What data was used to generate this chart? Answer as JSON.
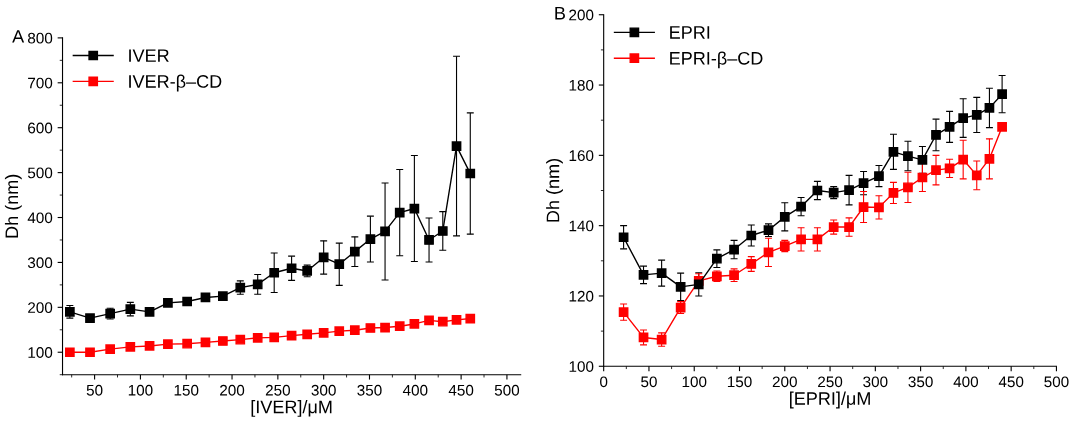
{
  "chart_data": [
    {
      "type": "line",
      "xlabel": "[IVER]/μM",
      "ylabel": "Dh (nm)",
      "annotations": [
        "A"
      ],
      "xlim": [
        15,
        515
      ],
      "ylim": [
        50,
        800
      ],
      "xticks": [
        50,
        100,
        150,
        200,
        250,
        300,
        350,
        400,
        450,
        500
      ],
      "yticks": [
        100,
        200,
        300,
        400,
        500,
        600,
        700,
        800
      ],
      "legend": "top left",
      "marker": "square",
      "line_style": "solid",
      "grid": false,
      "series": [
        {
          "name": "IVER",
          "color": "#000000",
          "x": [
            23,
            45,
            67,
            89,
            110,
            130,
            151,
            171,
            190,
            209,
            228,
            246,
            265,
            282,
            300,
            317,
            334,
            351,
            367,
            383,
            399,
            415,
            430,
            445,
            460
          ],
          "values": [
            190,
            176,
            186,
            196,
            190,
            210,
            213,
            222,
            225,
            244,
            251,
            277,
            287,
            281,
            311,
            296,
            324,
            352,
            369,
            411,
            420,
            350,
            370,
            559,
            498
          ],
          "errors": [
            14,
            5,
            12,
            15,
            4,
            5,
            4,
            8,
            4,
            15,
            22,
            44,
            27,
            13,
            37,
            47,
            33,
            51,
            108,
            96,
            118,
            49,
            43,
            200,
            135
          ]
        },
        {
          "name": "IVER-β–CD",
          "color": "#ff0000",
          "x": [
            23,
            45,
            67,
            89,
            110,
            130,
            151,
            171,
            190,
            209,
            228,
            246,
            265,
            282,
            300,
            317,
            334,
            351,
            367,
            383,
            399,
            415,
            430,
            445,
            460
          ],
          "values": [
            100,
            100,
            107,
            112,
            114,
            118,
            119,
            122,
            125,
            128,
            132,
            133,
            137,
            140,
            143,
            147,
            149,
            154,
            155,
            158,
            163,
            171,
            168,
            172,
            175
          ]
        }
      ]
    },
    {
      "type": "line",
      "xlabel": "[EPRI]/μM",
      "ylabel": "Dh (nm)",
      "annotations": [
        "B"
      ],
      "xlim": [
        0,
        500
      ],
      "ylim": [
        100,
        200
      ],
      "xticks": [
        0,
        50,
        100,
        150,
        200,
        250,
        300,
        350,
        400,
        450,
        500
      ],
      "yticks": [
        100,
        120,
        140,
        160,
        180,
        200
      ],
      "legend": "top left",
      "marker": "square",
      "line_style": "solid",
      "grid": false,
      "series": [
        {
          "name": "EPRI",
          "color": "#000000",
          "x": [
            22,
            44,
            64,
            85,
            105,
            125,
            144,
            163,
            182,
            200,
            218,
            236,
            254,
            271,
            287,
            304,
            320,
            336,
            352,
            367,
            382,
            397,
            412,
            426,
            440
          ],
          "values": [
            136.7,
            126.0,
            126.5,
            122.6,
            123.3,
            130.6,
            133.2,
            137.2,
            138.7,
            142.5,
            145.4,
            150.0,
            149.4,
            150.1,
            152.1,
            154.1,
            161.0,
            159.8,
            158.7,
            165.8,
            168.1,
            170.6,
            171.5,
            173.5,
            177.4
          ],
          "errors": [
            3.3,
            2.5,
            3.7,
            3.9,
            3.3,
            2.5,
            2.6,
            3.0,
            1.8,
            4.0,
            2.6,
            2.6,
            1.7,
            4.2,
            3.3,
            3.0,
            5.0,
            4.2,
            3.8,
            4.5,
            4.4,
            5.5,
            5.0,
            5.6,
            5.3
          ]
        },
        {
          "name": "EPRI-β–CD",
          "color": "#ff0000",
          "x": [
            22,
            44,
            64,
            85,
            105,
            125,
            144,
            163,
            182,
            200,
            218,
            236,
            254,
            271,
            287,
            304,
            320,
            336,
            352,
            367,
            382,
            397,
            412,
            426,
            440
          ],
          "values": [
            115.4,
            108.2,
            107.6,
            116.7,
            124.3,
            125.6,
            125.9,
            129.1,
            132.4,
            134.2,
            136.1,
            136.1,
            139.6,
            139.6,
            145.3,
            145.2,
            149.3,
            150.9,
            153.7,
            155.8,
            156.3,
            158.8,
            154.3,
            159.0,
            168.1
          ],
          "errors": [
            2.3,
            2.1,
            1.9,
            1.7,
            2.0,
            1.5,
            1.8,
            2.1,
            4.0,
            1.6,
            3.3,
            3.3,
            2.0,
            2.6,
            4.4,
            3.3,
            3.0,
            4.3,
            4.0,
            4.2,
            2.6,
            5.5,
            4.1,
            5.7,
            0.8
          ]
        }
      ]
    }
  ]
}
